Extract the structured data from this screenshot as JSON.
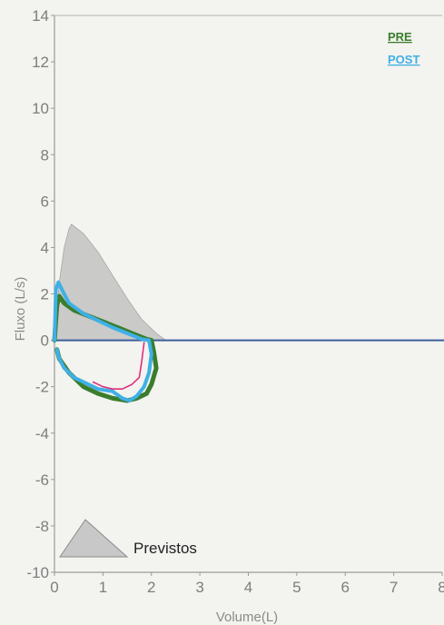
{
  "chart_data": {
    "type": "line",
    "title": "",
    "xlabel": "Volume(L)",
    "ylabel": "Fluxo (L/s)",
    "xlim": [
      0,
      8
    ],
    "ylim": [
      -10,
      14
    ],
    "xticks": [
      0,
      1,
      2,
      3,
      4,
      5,
      6,
      7,
      8
    ],
    "yticks": [
      -10,
      -8,
      -6,
      -4,
      -2,
      0,
      2,
      4,
      6,
      8,
      10,
      12,
      14
    ],
    "grid": false,
    "legend_position": "top-right",
    "legend_labels": {
      "pre": "PRE",
      "post": "POST",
      "predicted": "Previstos"
    },
    "colors": {
      "pre": "#3a7d2c",
      "post": "#3fb0e6",
      "pre_inner": "#e0307a",
      "predicted_fill": "#c2c2c2",
      "zero_line": "#3b5f9a",
      "axis": "#9a9a9a"
    },
    "predicted_area": [
      [
        0.0,
        0.0
      ],
      [
        0.1,
        2.5
      ],
      [
        0.2,
        4.0
      ],
      [
        0.3,
        4.8
      ],
      [
        0.35,
        5.0
      ],
      [
        0.6,
        4.6
      ],
      [
        0.9,
        3.8
      ],
      [
        1.2,
        2.8
      ],
      [
        1.5,
        1.8
      ],
      [
        1.8,
        0.9
      ],
      [
        2.1,
        0.3
      ],
      [
        2.3,
        0.0
      ]
    ],
    "series": [
      {
        "key": "pre",
        "x": [
          0.0,
          0.05,
          0.1,
          0.2,
          0.4,
          0.7,
          1.0,
          1.3,
          1.6,
          1.9,
          2.0,
          2.05,
          2.1,
          2.0,
          1.9,
          1.7,
          1.5,
          1.2,
          0.9,
          0.6,
          0.3,
          0.1,
          0.05
        ],
        "y": [
          0.0,
          1.5,
          1.9,
          1.6,
          1.3,
          1.05,
          0.8,
          0.55,
          0.3,
          0.05,
          0.0,
          -0.5,
          -1.2,
          -1.9,
          -2.3,
          -2.5,
          -2.6,
          -2.5,
          -2.3,
          -2.0,
          -1.4,
          -0.8,
          -0.4
        ]
      },
      {
        "key": "post",
        "x": [
          0.0,
          0.03,
          0.08,
          0.15,
          0.3,
          0.6,
          0.9,
          1.2,
          1.5,
          1.8,
          1.95,
          2.0,
          1.95,
          1.85,
          1.7,
          1.55,
          1.4,
          1.2,
          0.9,
          0.6,
          0.4,
          0.2,
          0.1,
          0.05
        ],
        "y": [
          0.0,
          2.2,
          2.5,
          2.2,
          1.6,
          1.15,
          0.85,
          0.55,
          0.3,
          0.05,
          0.0,
          -0.6,
          -1.4,
          -2.0,
          -2.4,
          -2.6,
          -2.5,
          -2.2,
          -2.1,
          -1.8,
          -1.6,
          -1.2,
          -0.8,
          -0.4
        ]
      },
      {
        "key": "pre_inner",
        "x": [
          1.85,
          1.8,
          1.75,
          1.6,
          1.4,
          1.2,
          1.0,
          0.8
        ],
        "y": [
          -0.1,
          -0.9,
          -1.6,
          -1.9,
          -2.1,
          -2.1,
          -2.0,
          -1.8
        ]
      }
    ]
  }
}
